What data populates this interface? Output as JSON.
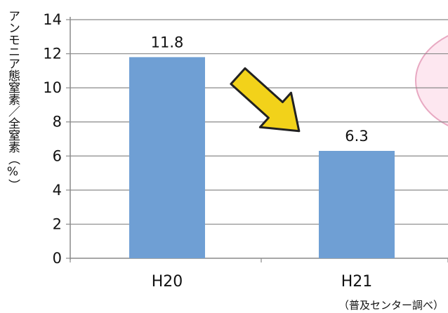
{
  "chart_data": {
    "type": "bar",
    "categories": [
      "H20",
      "H21"
    ],
    "values": [
      11.8,
      6.3
    ],
    "data_labels": [
      "11.8",
      "6.3"
    ],
    "ylabel": "アンモニア態窒素／全窒素（%）",
    "ylim": [
      0,
      14
    ],
    "yticks": [
      "0",
      "2",
      "4",
      "6",
      "8",
      "10",
      "12",
      "14"
    ],
    "grid": true,
    "bar_color": "#6f9fd4",
    "arrow_color": "#f2d21a",
    "source_note": "（普及センター調べ）"
  }
}
